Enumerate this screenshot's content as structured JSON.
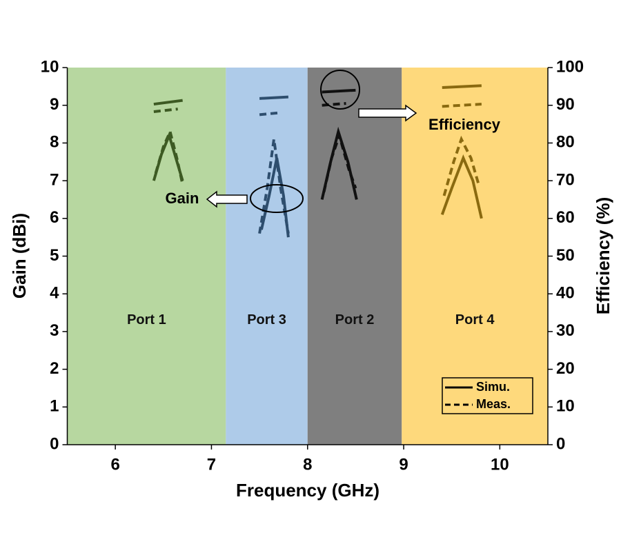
{
  "chart_data": {
    "type": "line",
    "xlabel": "Frequency (GHz)",
    "ylabel": "Gain (dBi)",
    "y2label": "Efficiency (%)",
    "xlim": [
      5.5,
      10.5
    ],
    "xticks": [
      6,
      7,
      8,
      9,
      10
    ],
    "ylim": [
      0,
      10
    ],
    "yticks": [
      0,
      1,
      2,
      3,
      4,
      5,
      6,
      7,
      8,
      9,
      10
    ],
    "y2lim": [
      0,
      100
    ],
    "y2ticks": [
      0,
      10,
      20,
      30,
      40,
      50,
      60,
      70,
      80,
      90,
      100
    ],
    "regions": [
      {
        "label": "Port 1",
        "from": 5.5,
        "to": 7.15,
        "color": "#b7d7a0"
      },
      {
        "label": "Port 3",
        "from": 7.15,
        "to": 8.0,
        "color": "#aecbe9"
      },
      {
        "label": "Port 2",
        "from": 8.0,
        "to": 8.98,
        "color": "#7f7f7f"
      },
      {
        "label": "Port 4",
        "from": 8.98,
        "to": 10.5,
        "color": "#fed97c"
      }
    ],
    "legend": [
      {
        "label": "Simu.",
        "dash": false
      },
      {
        "label": "Meas.",
        "dash": true
      }
    ],
    "annotations": [
      "Gain",
      "Efficiency"
    ],
    "series": [
      {
        "color": "#3d5a23",
        "dash": false,
        "x": [
          6.4,
          6.48,
          6.56,
          6.63,
          6.7
        ],
        "values": [
          7.0,
          7.7,
          8.2,
          7.6,
          7.0
        ]
      },
      {
        "color": "#3d5a23",
        "dash": true,
        "x": [
          6.42,
          6.5,
          6.57,
          6.64,
          6.7
        ],
        "values": [
          7.2,
          7.9,
          8.3,
          7.6,
          6.9
        ]
      },
      {
        "color": "#3d5a23",
        "dash": false,
        "axis": "y2",
        "x": [
          6.4,
          6.7
        ],
        "values": [
          90.3,
          91.3
        ]
      },
      {
        "color": "#3d5a23",
        "dash": true,
        "axis": "y2",
        "x": [
          6.4,
          6.65
        ],
        "values": [
          88.3,
          89.0
        ]
      },
      {
        "color": "#2e4e6e",
        "dash": false,
        "x": [
          7.52,
          7.6,
          7.68,
          7.75,
          7.8
        ],
        "values": [
          5.7,
          6.6,
          7.6,
          6.6,
          5.5
        ]
      },
      {
        "color": "#2e4e6e",
        "dash": true,
        "x": [
          7.5,
          7.58,
          7.65,
          7.72,
          7.8
        ],
        "values": [
          5.6,
          6.8,
          8.1,
          6.8,
          5.6
        ]
      },
      {
        "color": "#2e4e6e",
        "dash": false,
        "axis": "y2",
        "x": [
          7.5,
          7.8
        ],
        "values": [
          91.8,
          92.2
        ]
      },
      {
        "color": "#2e4e6e",
        "dash": true,
        "axis": "y2",
        "x": [
          7.5,
          7.7
        ],
        "values": [
          87.5,
          88.0
        ]
      },
      {
        "color": "#111111",
        "dash": false,
        "x": [
          8.15,
          8.24,
          8.32,
          8.42,
          8.51
        ],
        "values": [
          6.5,
          7.5,
          8.3,
          7.5,
          6.5
        ]
      },
      {
        "color": "#111111",
        "dash": true,
        "x": [
          8.17,
          8.25,
          8.33,
          8.43,
          8.5
        ],
        "values": [
          6.7,
          7.6,
          8.2,
          7.3,
          6.8
        ]
      },
      {
        "color": "#111111",
        "dash": false,
        "axis": "y2",
        "x": [
          8.15,
          8.5
        ],
        "values": [
          93.5,
          94.0
        ]
      },
      {
        "color": "#111111",
        "dash": true,
        "axis": "y2",
        "x": [
          8.15,
          8.4
        ],
        "values": [
          90.0,
          90.5
        ]
      },
      {
        "color": "#8a6a10",
        "dash": false,
        "x": [
          9.4,
          9.5,
          9.62,
          9.72,
          9.81
        ],
        "values": [
          6.1,
          6.8,
          7.6,
          7.0,
          6.0
        ]
      },
      {
        "color": "#8a6a10",
        "dash": true,
        "x": [
          9.42,
          9.52,
          9.6,
          9.7,
          9.78
        ],
        "values": [
          6.6,
          7.5,
          8.1,
          7.6,
          6.9
        ]
      },
      {
        "color": "#8a6a10",
        "dash": false,
        "axis": "y2",
        "x": [
          9.4,
          9.81
        ],
        "values": [
          94.7,
          95.2
        ]
      },
      {
        "color": "#8a6a10",
        "dash": true,
        "axis": "y2",
        "x": [
          9.4,
          9.81
        ],
        "values": [
          89.7,
          90.3
        ]
      }
    ]
  }
}
